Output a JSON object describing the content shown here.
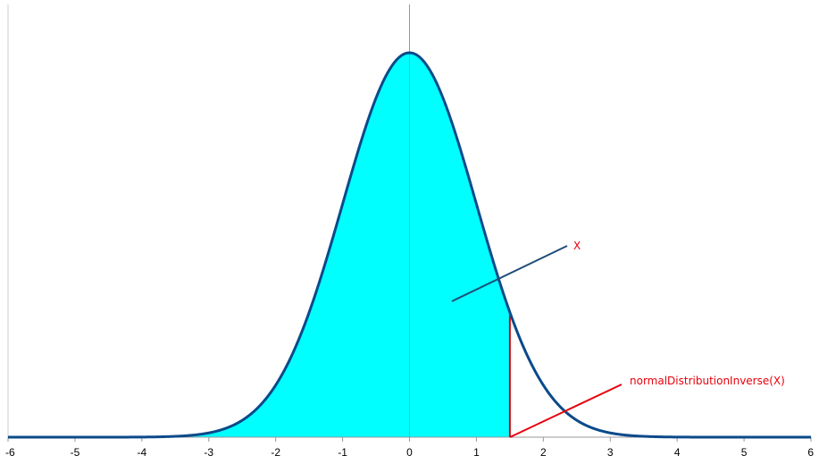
{
  "chart_data": {
    "type": "area",
    "distribution": "standard normal",
    "xlim": [
      -6,
      6
    ],
    "x_ticks": [
      "-6",
      "-5",
      "-4",
      "-3",
      "-2",
      "-1",
      "0",
      "1",
      "2",
      "3",
      "4",
      "5",
      "6"
    ],
    "shaded_upper_x": 1.5,
    "grid": false,
    "legend": "none",
    "annotations": [
      {
        "text": "X",
        "color": "#e8000b",
        "line_color": "#1f4e79",
        "points_to": "shaded-area"
      },
      {
        "text": "normalDistributionInverse(X)",
        "color": "#e8000b",
        "line_color": "#e8000b",
        "points_to": "cutoff-line-base"
      }
    ],
    "colors": {
      "fill": "#00ffff",
      "curve": "#0b4a8a",
      "cutoff": "#e8000b",
      "axis": "#999999"
    }
  }
}
